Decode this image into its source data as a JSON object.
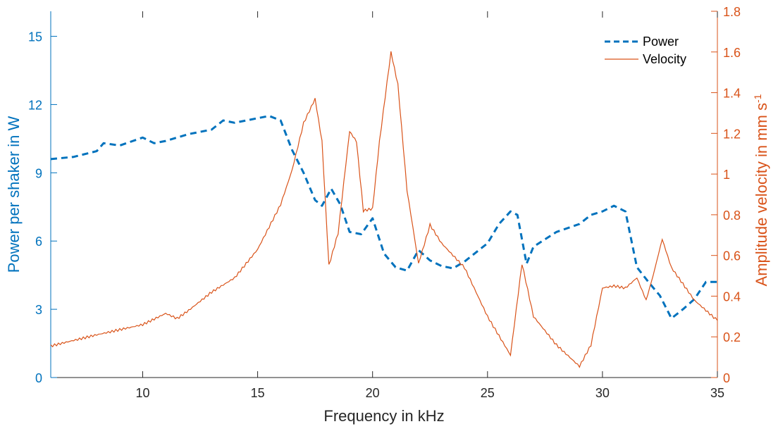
{
  "chart_data": {
    "type": "line",
    "title": "",
    "xlabel": "Frequency in kHz",
    "ylabel_left": "Power per shaker in W",
    "ylabel_right": "Amplitude velocity in mm s",
    "ylabel_right_superscript": "-1",
    "xlim": [
      6,
      35
    ],
    "ylim_left": [
      0,
      16.1
    ],
    "ylim_right": [
      0,
      1.8
    ],
    "xticks": [
      10,
      15,
      20,
      25,
      30,
      35
    ],
    "xtick_labels": [
      "10",
      "15",
      "20",
      "25",
      "30",
      "35"
    ],
    "yticks_left": [
      0,
      3,
      6,
      9,
      12,
      15
    ],
    "ytick_labels_left": [
      "0",
      "3",
      "6",
      "9",
      "12",
      "15"
    ],
    "yticks_right": [
      0,
      0.2,
      0.4,
      0.6,
      0.8,
      1,
      1.2,
      1.4,
      1.6,
      1.8
    ],
    "ytick_labels_right": [
      "0",
      "0.2",
      "0.4",
      "0.6",
      "0.8",
      "1",
      "1.2",
      "1.4",
      "1.6",
      "1.8"
    ],
    "grid": false,
    "legend_position": "top-right",
    "colors": {
      "left": "#0072BD",
      "right": "#D95319"
    },
    "series": [
      {
        "name": "Power",
        "axis": "left",
        "style": "dashed",
        "x": [
          6,
          7,
          8,
          8.3,
          9,
          10,
          10.5,
          11,
          12,
          13,
          13.5,
          14,
          15,
          15.5,
          16,
          16.5,
          17,
          17.5,
          17.8,
          18.2,
          18.6,
          19,
          19.5,
          20,
          20.5,
          21,
          21.5,
          22,
          22.5,
          23,
          23.5,
          24,
          25,
          25.5,
          26,
          26.3,
          26.7,
          27,
          28,
          29,
          29.5,
          30,
          30.5,
          31,
          31.5,
          32,
          32.5,
          33,
          33.5,
          34,
          34.5,
          35
        ],
        "y": [
          9.6,
          9.7,
          9.95,
          10.3,
          10.2,
          10.55,
          10.3,
          10.4,
          10.7,
          10.9,
          11.3,
          11.2,
          11.4,
          11.5,
          11.3,
          10.0,
          9.0,
          7.8,
          7.55,
          8.3,
          7.6,
          6.4,
          6.3,
          7.0,
          5.45,
          4.85,
          4.7,
          5.6,
          5.15,
          4.9,
          4.8,
          5.1,
          5.9,
          6.75,
          7.3,
          7.15,
          5.0,
          5.75,
          6.4,
          6.75,
          7.15,
          7.3,
          7.55,
          7.3,
          4.85,
          4.2,
          3.6,
          2.6,
          3.0,
          3.45,
          4.2,
          4.2
        ]
      },
      {
        "name": "Velocity",
        "axis": "right",
        "style": "solid",
        "x": [
          6,
          8,
          10,
          11,
          11.5,
          12,
          13,
          14,
          15,
          16,
          16.5,
          17,
          17.5,
          17.8,
          18.1,
          18.5,
          19,
          19.3,
          19.6,
          20,
          20.3,
          20.8,
          21.1,
          21.5,
          22,
          22.5,
          23,
          24,
          25,
          26,
          26.5,
          27,
          28,
          29,
          29.5,
          30,
          30.5,
          31,
          31.5,
          31.9,
          32.2,
          32.6,
          33,
          34,
          35
        ],
        "y": [
          0.155,
          0.21,
          0.26,
          0.315,
          0.29,
          0.33,
          0.42,
          0.49,
          0.63,
          0.85,
          1.02,
          1.25,
          1.37,
          1.16,
          0.55,
          0.71,
          1.21,
          1.16,
          0.82,
          0.83,
          1.16,
          1.6,
          1.44,
          0.92,
          0.56,
          0.75,
          0.66,
          0.54,
          0.3,
          0.11,
          0.56,
          0.3,
          0.16,
          0.055,
          0.16,
          0.44,
          0.45,
          0.44,
          0.49,
          0.38,
          0.5,
          0.68,
          0.54,
          0.38,
          0.28
        ]
      }
    ],
    "legend": [
      "Power",
      "Velocity"
    ]
  }
}
